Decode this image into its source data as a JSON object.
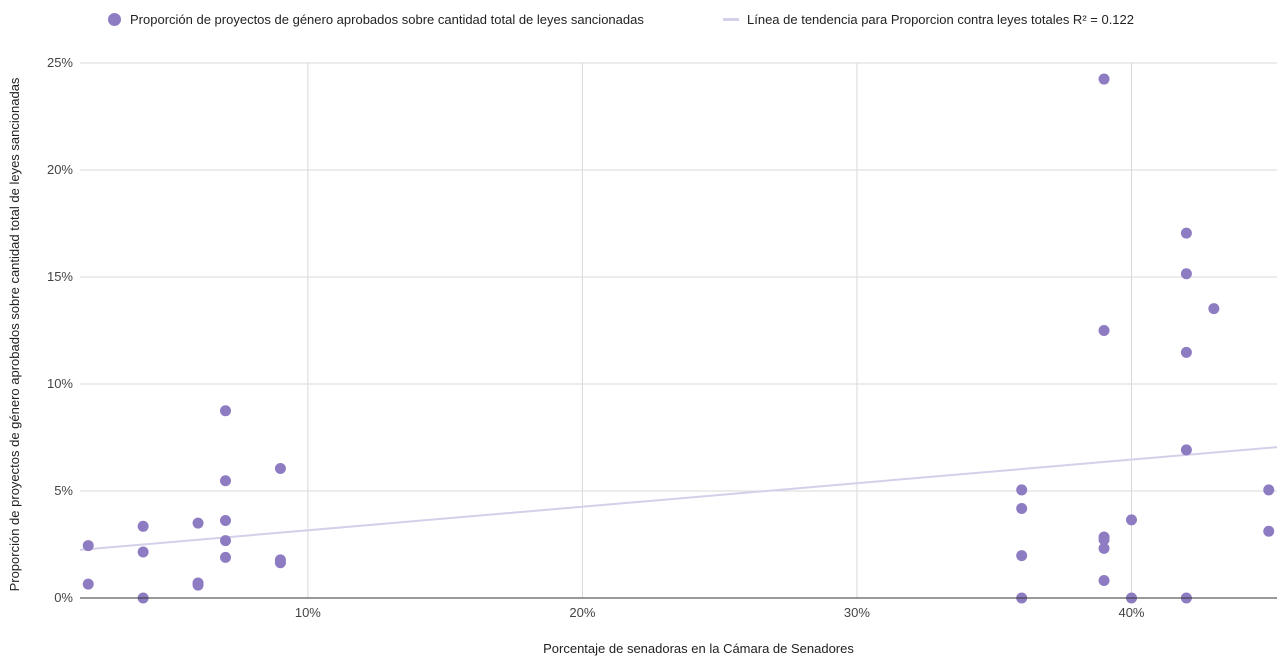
{
  "chart_data": {
    "type": "scatter",
    "title": "",
    "xlabel": "Porcentaje de senadoras en la Cámara de Senadores",
    "ylabel": "Proporción de proyectos de género aprobados sobre cantidad total de leyes sancionadas",
    "xlim": [
      0.017,
      0.453
    ],
    "ylim": [
      0,
      0.25
    ],
    "grid": true,
    "legend_position": "top",
    "x_ticks": [
      {
        "value": 0.1,
        "label": "10%"
      },
      {
        "value": 0.2,
        "label": "20%"
      },
      {
        "value": 0.3,
        "label": "30%"
      },
      {
        "value": 0.4,
        "label": "40%"
      }
    ],
    "y_ticks": [
      {
        "value": 0.0,
        "label": "0%"
      },
      {
        "value": 0.05,
        "label": "5%"
      },
      {
        "value": 0.1,
        "label": "10%"
      },
      {
        "value": 0.15,
        "label": "15%"
      },
      {
        "value": 0.2,
        "label": "20%"
      },
      {
        "value": 0.25,
        "label": "25%"
      }
    ],
    "series": [
      {
        "name": "Proporción de proyectos de género aprobados sobre cantidad total de leyes sancionadas",
        "color": "#8e7cc3",
        "points": [
          [
            0.02,
            0.0245
          ],
          [
            0.02,
            0.0065
          ],
          [
            0.04,
            0.0335
          ],
          [
            0.04,
            0.0215
          ],
          [
            0.04,
            0.0
          ],
          [
            0.06,
            0.035
          ],
          [
            0.06,
            0.007
          ],
          [
            0.06,
            0.006
          ],
          [
            0.07,
            0.0875
          ],
          [
            0.07,
            0.0548
          ],
          [
            0.07,
            0.0362
          ],
          [
            0.07,
            0.0268
          ],
          [
            0.07,
            0.019
          ],
          [
            0.09,
            0.0605
          ],
          [
            0.09,
            0.0178
          ],
          [
            0.09,
            0.0165
          ],
          [
            0.36,
            0.0505
          ],
          [
            0.36,
            0.0418
          ],
          [
            0.36,
            0.0198
          ],
          [
            0.36,
            0.0
          ],
          [
            0.39,
            0.2425
          ],
          [
            0.39,
            0.125
          ],
          [
            0.39,
            0.0285
          ],
          [
            0.39,
            0.0272
          ],
          [
            0.39,
            0.0232
          ],
          [
            0.39,
            0.0082
          ],
          [
            0.4,
            0.0365
          ],
          [
            0.4,
            0.0
          ],
          [
            0.42,
            0.1705
          ],
          [
            0.42,
            0.1515
          ],
          [
            0.42,
            0.1148
          ],
          [
            0.42,
            0.0692
          ],
          [
            0.42,
            0.0
          ],
          [
            0.43,
            0.1352
          ],
          [
            0.45,
            0.0505
          ],
          [
            0.45,
            0.0312
          ]
        ]
      }
    ],
    "trendline": {
      "name": "Línea de tendencia para Proporcion contra leyes totales R² = 0.122",
      "color": "#d5cfe9",
      "x": [
        0.017,
        0.453
      ],
      "y": [
        0.0225,
        0.0705
      ]
    }
  },
  "legend": {
    "series_label": "Proporción de proyectos de género aprobados sobre cantidad total de leyes sancionadas",
    "trend_label": "Línea de tendencia para Proporcion contra leyes totales R² = 0.122"
  }
}
